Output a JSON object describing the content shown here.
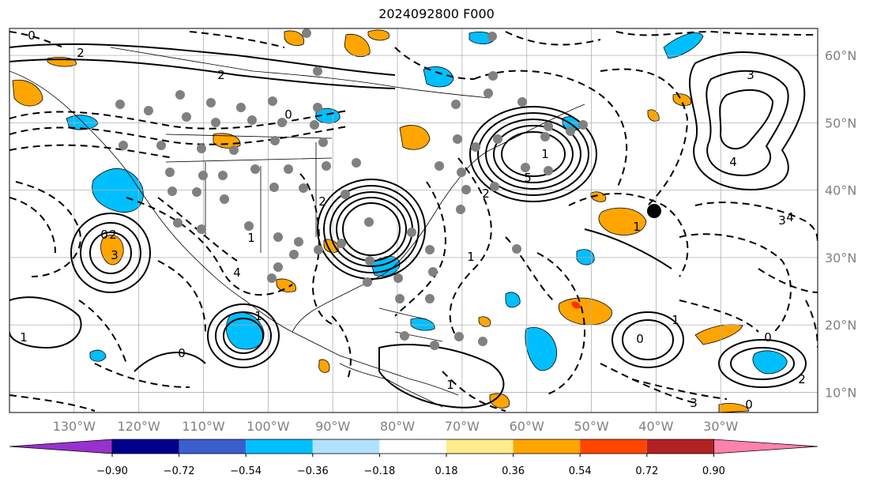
{
  "title": "2024092800 F000",
  "map": {
    "projection": "plate-carree",
    "lon_range": [
      -140,
      -15
    ],
    "lat_range": [
      7,
      64
    ],
    "grid": true,
    "lon_ticks": [
      "130°W",
      "120°W",
      "110°W",
      "100°W",
      "90°W",
      "80°W",
      "70°W",
      "60°W",
      "50°W",
      "40°W",
      "30°W"
    ],
    "lat_ticks": [
      "60°N",
      "50°N",
      "40°N",
      "30°N",
      "20°N",
      "10°N"
    ],
    "contour_labels": [
      "0",
      "2",
      "3",
      "4",
      "5",
      "1",
      "2",
      "3",
      "4",
      "0",
      "1",
      "2",
      "0",
      "2",
      "1",
      "1",
      "0",
      "1",
      "2",
      "3",
      "4",
      "0",
      "1",
      "0",
      "2",
      "1",
      "3",
      "0",
      "1"
    ],
    "colors": {
      "negative_strong": "#00bfff",
      "positive": "#ffa500",
      "positive_strong": "#ff3300",
      "station_marker": "#808080",
      "highlight_marker": "#000000"
    }
  },
  "colorbar": {
    "ticks": [
      "−0.90",
      "−0.72",
      "−0.54",
      "−0.36",
      "−0.18",
      "0.18",
      "0.36",
      "0.54",
      "0.72",
      "0.90"
    ],
    "colors": [
      "#9932cc",
      "#00008b",
      "#3a5fcd",
      "#00bfff",
      "#b0e2ff",
      "#ffffff",
      "#ffec8b",
      "#ffa500",
      "#ff4500",
      "#b22222",
      "#ff82ab"
    ]
  }
}
